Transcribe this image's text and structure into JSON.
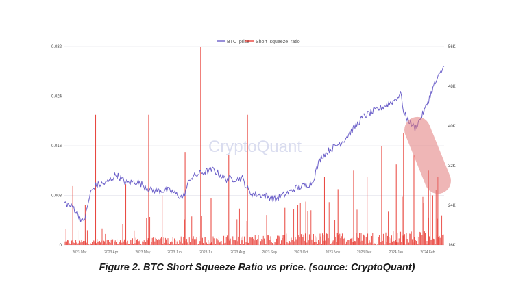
{
  "figure_caption": "Figure 2.  BTC Short Squeeze Ratio vs price. (source: CryptoQuant)",
  "watermark": "CryptoQuant",
  "chart_data": {
    "type": "line",
    "legend_position": "top",
    "grid": true,
    "x_range": [
      "2023-02-20",
      "2024-02-20"
    ],
    "x_tick_labels": [
      "2023 Mar",
      "2023 Apr",
      "2023 May",
      "2023 Jun",
      "2023 Jul",
      "2023 Aug",
      "2023 Sep",
      "2023 Oct",
      "2023 Nov",
      "2023 Dec",
      "2024 Jan",
      "2024 Feb"
    ],
    "y_left": {
      "min": 0,
      "max": 0.032,
      "ticks": [
        "0",
        "0.008",
        "0.016",
        "0.024",
        "0.032"
      ]
    },
    "y_right": {
      "min": 16000,
      "max": 56000,
      "ticks": [
        "16K",
        "24K",
        "32K",
        "40K",
        "48K",
        "56K"
      ]
    },
    "colors": {
      "BTC_price": "#6b5fc9",
      "Short_squeeze_ratio": "#e8423a",
      "highlight": "#e27a7a"
    },
    "series": [
      {
        "name": "BTC_price",
        "axis": "right",
        "points": [
          [
            "2023-02-20",
            24500
          ],
          [
            "2023-03-01",
            23500
          ],
          [
            "2023-03-10",
            20500
          ],
          [
            "2023-03-13",
            22500
          ],
          [
            "2023-03-17",
            26500
          ],
          [
            "2023-03-22",
            28000
          ],
          [
            "2023-04-01",
            28500
          ],
          [
            "2023-04-11",
            30200
          ],
          [
            "2023-04-20",
            28500
          ],
          [
            "2023-05-01",
            28800
          ],
          [
            "2023-05-15",
            27000
          ],
          [
            "2023-06-01",
            27000
          ],
          [
            "2023-06-14",
            25500
          ],
          [
            "2023-06-21",
            29500
          ],
          [
            "2023-07-01",
            30500
          ],
          [
            "2023-07-13",
            31200
          ],
          [
            "2023-07-25",
            29300
          ],
          [
            "2023-08-10",
            29400
          ],
          [
            "2023-08-17",
            26500
          ],
          [
            "2023-09-01",
            25900
          ],
          [
            "2023-09-11",
            25200
          ],
          [
            "2023-10-01",
            27500
          ],
          [
            "2023-10-16",
            28500
          ],
          [
            "2023-10-24",
            33500
          ],
          [
            "2023-11-01",
            35000
          ],
          [
            "2023-11-15",
            37000
          ],
          [
            "2023-12-05",
            42000
          ],
          [
            "2023-12-20",
            43500
          ],
          [
            "2024-01-02",
            45000
          ],
          [
            "2024-01-10",
            46500
          ],
          [
            "2024-01-12",
            42500
          ],
          [
            "2024-01-23",
            39500
          ],
          [
            "2024-02-01",
            43000
          ],
          [
            "2024-02-10",
            48000
          ],
          [
            "2024-02-20",
            52000
          ]
        ]
      },
      {
        "name": "Short_squeeze_ratio",
        "axis": "left",
        "baseline_max": 0.0025,
        "spikes": [
          [
            "2023-02-28",
            0.0095
          ],
          [
            "2023-03-12",
            0.0065
          ],
          [
            "2023-03-22",
            0.021
          ],
          [
            "2023-04-20",
            0.0098
          ],
          [
            "2023-05-12",
            0.021
          ],
          [
            "2023-05-25",
            0.008
          ],
          [
            "2023-06-16",
            0.015
          ],
          [
            "2023-07-01",
            0.0319
          ],
          [
            "2023-07-11",
            0.0075
          ],
          [
            "2023-07-28",
            0.0145
          ],
          [
            "2023-08-15",
            0.021
          ],
          [
            "2023-09-20",
            0.006
          ],
          [
            "2023-10-10",
            0.007
          ],
          [
            "2023-10-28",
            0.011
          ],
          [
            "2023-11-10",
            0.009
          ],
          [
            "2023-11-25",
            0.012
          ],
          [
            "2023-12-08",
            0.011
          ],
          [
            "2023-12-22",
            0.016
          ],
          [
            "2024-01-05",
            0.013
          ],
          [
            "2024-01-12",
            0.018
          ],
          [
            "2024-01-22",
            0.0145
          ],
          [
            "2024-02-05",
            0.012
          ],
          [
            "2024-02-14",
            0.011
          ]
        ]
      }
    ],
    "highlight_label": ""
  }
}
